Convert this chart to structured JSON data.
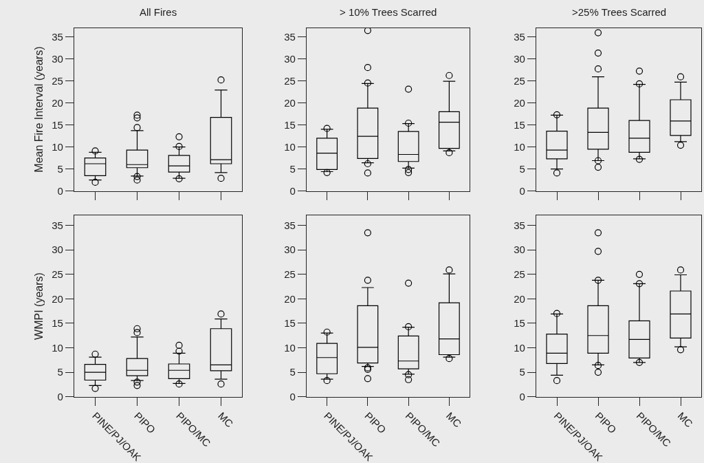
{
  "chart_data": [
    {
      "type": "box",
      "title": "All Fires",
      "ylabel": "Mean Fire Interval (years)",
      "categories": [
        null,
        null,
        null,
        null
      ],
      "ylim": [
        0,
        37
      ],
      "yticks": [
        0,
        5,
        10,
        15,
        20,
        25,
        30,
        35
      ],
      "tick_labels": "y",
      "color": "#000000",
      "marker": "circle",
      "boxes": [
        {
          "low": 2.5,
          "q1": 3.5,
          "median": 6.2,
          "q3": 7.5,
          "high": 8.8,
          "outliers": [
            9.1,
            2.0
          ]
        },
        {
          "low": 3.4,
          "q1": 5.3,
          "median": 6.0,
          "q3": 9.3,
          "high": 13.7,
          "outliers": [
            17.2,
            16.6,
            14.4,
            3.3,
            2.5
          ]
        },
        {
          "low": 2.9,
          "q1": 4.3,
          "median": 5.7,
          "q3": 8.1,
          "high": 10.0,
          "outliers": [
            12.3,
            10.1,
            2.8
          ]
        },
        {
          "low": 4.2,
          "q1": 6.2,
          "median": 7.1,
          "q3": 16.7,
          "high": 22.9,
          "outliers": [
            25.2,
            2.9
          ]
        }
      ]
    },
    {
      "type": "box",
      "title": "> 10% Trees Scarred",
      "categories": [
        null,
        null,
        null,
        null
      ],
      "ylim": [
        0,
        37
      ],
      "yticks": [
        0,
        5,
        10,
        15,
        20,
        25,
        30,
        35
      ],
      "tick_labels": "y",
      "color": "#000000",
      "marker": "circle",
      "boxes": [
        {
          "low": 4.4,
          "q1": 4.9,
          "median": 8.6,
          "q3": 12.0,
          "high": 14.0,
          "outliers": [
            14.2,
            4.2
          ]
        },
        {
          "low": 6.4,
          "q1": 7.4,
          "median": 12.4,
          "q3": 18.8,
          "high": 24.4,
          "outliers": [
            36.4,
            28.0,
            24.5,
            6.2,
            4.1
          ]
        },
        {
          "low": 5.2,
          "q1": 6.7,
          "median": 8.3,
          "q3": 13.5,
          "high": 15.3,
          "outliers": [
            23.1,
            15.4,
            4.9,
            4.2
          ]
        },
        {
          "low": 9.1,
          "q1": 9.7,
          "median": 15.6,
          "q3": 18.0,
          "high": 24.9,
          "outliers": [
            26.2,
            8.7
          ]
        }
      ]
    },
    {
      "type": "box",
      "title": ">25% Trees Scarred",
      "categories": [
        null,
        null,
        null,
        null
      ],
      "ylim": [
        0,
        37
      ],
      "yticks": [
        0,
        5,
        10,
        15,
        20,
        25,
        30,
        35
      ],
      "tick_labels": "y",
      "color": "#000000",
      "marker": "circle",
      "boxes": [
        {
          "low": 5.0,
          "q1": 7.3,
          "median": 9.3,
          "q3": 13.6,
          "high": 17.2,
          "outliers": [
            17.3,
            4.1
          ]
        },
        {
          "low": 6.9,
          "q1": 9.5,
          "median": 13.3,
          "q3": 18.8,
          "high": 25.9,
          "outliers": [
            35.9,
            31.3,
            27.7,
            6.9,
            5.4
          ]
        },
        {
          "low": 7.3,
          "q1": 8.8,
          "median": 12.0,
          "q3": 16.0,
          "high": 24.2,
          "outliers": [
            27.2,
            24.3,
            7.2
          ]
        },
        {
          "low": 11.2,
          "q1": 12.6,
          "median": 15.9,
          "q3": 20.7,
          "high": 24.7,
          "outliers": [
            25.9,
            10.4
          ]
        }
      ]
    },
    {
      "type": "box",
      "ylabel": "WMPI (years)",
      "categories": [
        "PINE/PJ/OAK",
        "PIPO",
        "PIPO/MC",
        "MC"
      ],
      "ylim": [
        0,
        37
      ],
      "yticks": [
        0,
        5,
        10,
        15,
        20,
        25,
        30,
        35
      ],
      "color": "#000000",
      "marker": "circle",
      "boxes": [
        {
          "low": 2.3,
          "q1": 3.4,
          "median": 5.0,
          "q3": 6.6,
          "high": 8.1,
          "outliers": [
            8.7,
            1.7
          ]
        },
        {
          "low": 3.3,
          "q1": 4.3,
          "median": 5.4,
          "q3": 7.8,
          "high": 12.2,
          "outliers": [
            13.9,
            13.1,
            3.0,
            2.3
          ]
        },
        {
          "low": 2.7,
          "q1": 3.7,
          "median": 5.4,
          "q3": 6.7,
          "high": 8.9,
          "outliers": [
            10.5,
            9.3,
            2.6
          ]
        },
        {
          "low": 3.6,
          "q1": 5.3,
          "median": 6.5,
          "q3": 13.9,
          "high": 15.9,
          "outliers": [
            16.9,
            2.6
          ]
        }
      ]
    },
    {
      "type": "box",
      "categories": [
        "PINE/PJ/OAK",
        "PIPO",
        "PIPO/MC",
        "MC"
      ],
      "ylim": [
        0,
        37
      ],
      "yticks": [
        0,
        5,
        10,
        15,
        20,
        25,
        30,
        35
      ],
      "color": "#000000",
      "marker": "circle",
      "boxes": [
        {
          "low": 3.6,
          "q1": 4.7,
          "median": 8.0,
          "q3": 10.9,
          "high": 13.0,
          "outliers": [
            13.2,
            3.3
          ]
        },
        {
          "low": 6.2,
          "q1": 6.9,
          "median": 10.1,
          "q3": 18.6,
          "high": 22.3,
          "outliers": [
            33.5,
            23.8,
            5.9,
            5.6,
            3.7
          ]
        },
        {
          "low": 4.6,
          "q1": 5.7,
          "median": 7.3,
          "q3": 12.4,
          "high": 14.2,
          "outliers": [
            23.2,
            14.3,
            4.5,
            3.5
          ]
        },
        {
          "low": 8.1,
          "q1": 8.6,
          "median": 11.8,
          "q3": 19.2,
          "high": 25.1,
          "outliers": [
            25.9,
            7.8
          ]
        }
      ]
    },
    {
      "type": "box",
      "categories": [
        "PINE/PJ/OAK",
        "PIPO",
        "PIPO/MC",
        "MC"
      ],
      "ylim": [
        0,
        37
      ],
      "yticks": [
        0,
        5,
        10,
        15,
        20,
        25,
        30,
        35
      ],
      "color": "#000000",
      "marker": "circle",
      "boxes": [
        {
          "low": 4.4,
          "q1": 6.8,
          "median": 8.9,
          "q3": 12.8,
          "high": 16.9,
          "outliers": [
            17.0,
            3.3
          ]
        },
        {
          "low": 6.5,
          "q1": 8.9,
          "median": 12.5,
          "q3": 18.6,
          "high": 23.8,
          "outliers": [
            33.5,
            29.7,
            23.8,
            6.4,
            5.0
          ]
        },
        {
          "low": 7.0,
          "q1": 7.9,
          "median": 11.7,
          "q3": 15.5,
          "high": 23.1,
          "outliers": [
            25.0,
            23.1,
            7.0
          ]
        },
        {
          "low": 10.2,
          "q1": 12.0,
          "median": 16.9,
          "q3": 21.6,
          "high": 24.9,
          "outliers": [
            25.9,
            9.6
          ]
        }
      ]
    }
  ]
}
